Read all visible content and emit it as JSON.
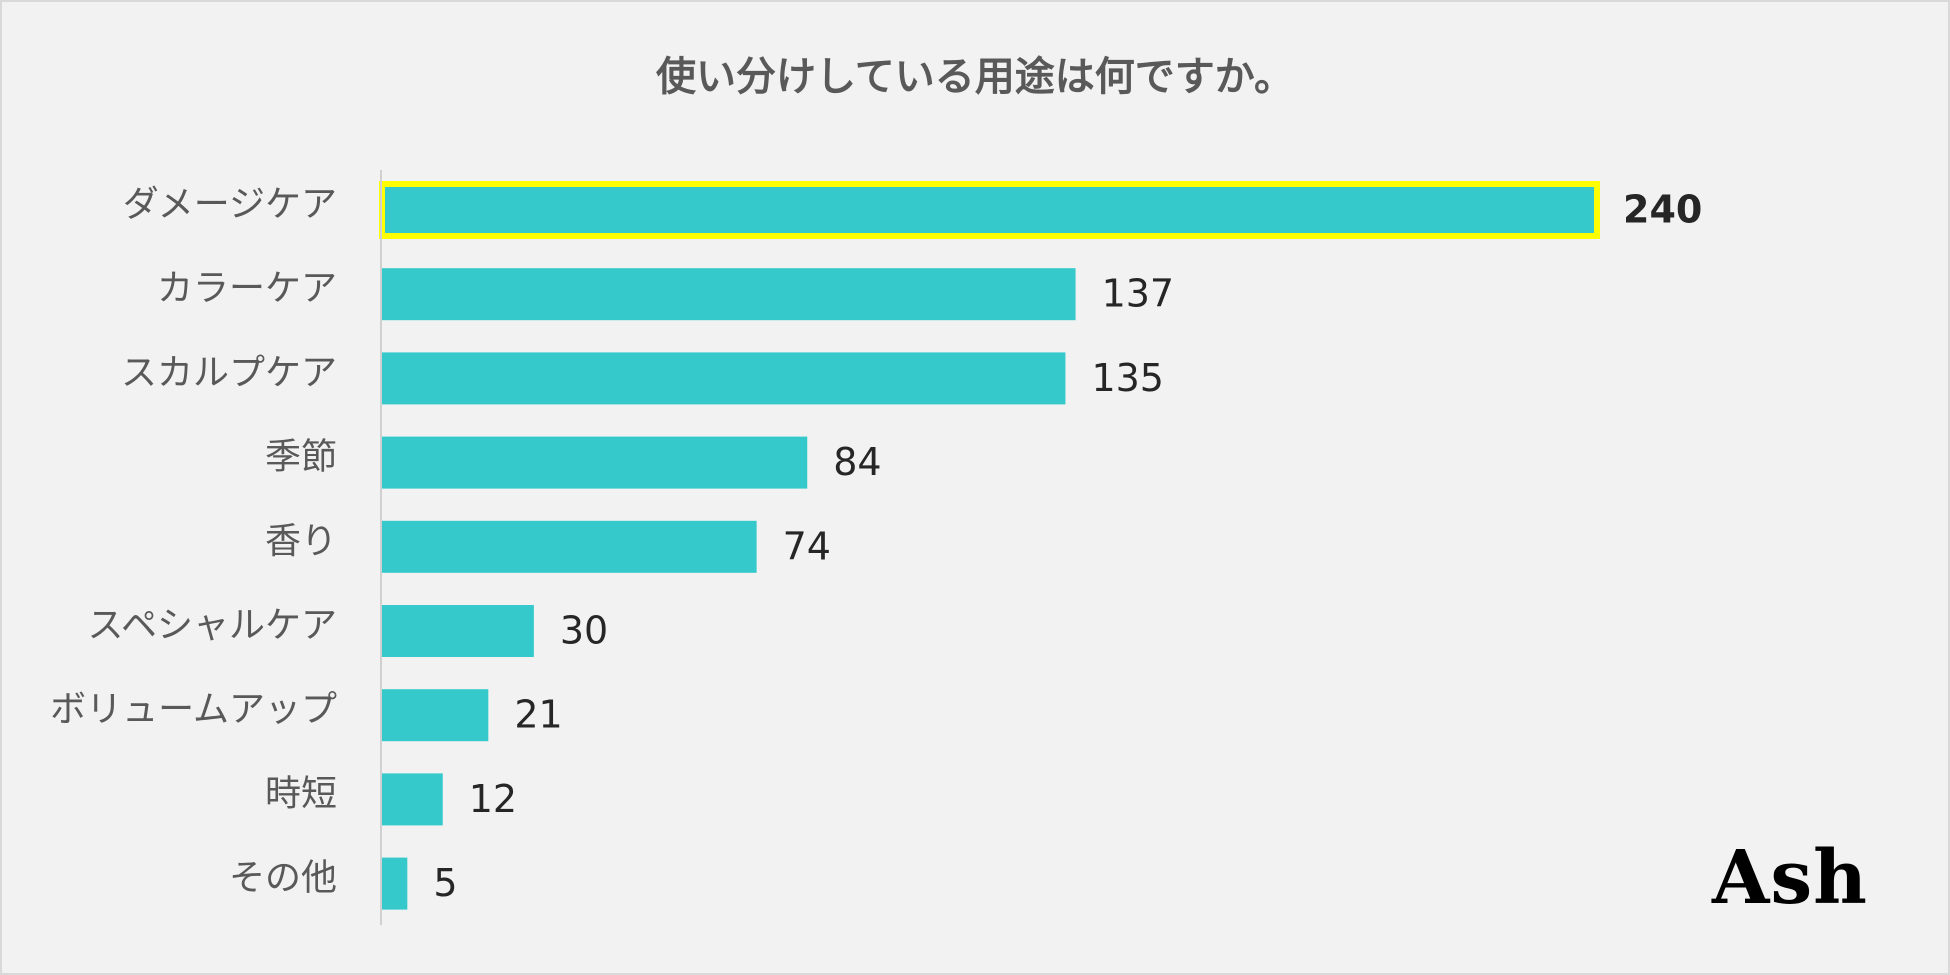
{
  "chart_data": {
    "type": "bar",
    "orientation": "horizontal",
    "title": "使い分けしている用途は何ですか。",
    "categories": [
      "ダメージケア",
      "カラーケア",
      "スカルプケア",
      "季節",
      "香り",
      "スペシャルケア",
      "ボリュームアップ",
      "時短",
      "その他"
    ],
    "values": [
      240,
      137,
      135,
      84,
      74,
      30,
      21,
      12,
      5
    ],
    "highlight_index": 0,
    "xlim": [
      0,
      240
    ],
    "grid": false,
    "legend": "none",
    "colors": {
      "bar": "#36c9cb",
      "highlight_border": "#ffff00",
      "axis": "#d0d0d0"
    }
  },
  "logo": {
    "text": "Ash"
  }
}
